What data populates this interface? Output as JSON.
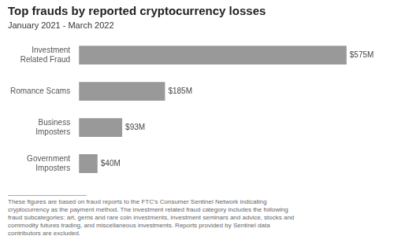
{
  "chart_data": {
    "type": "bar",
    "orientation": "horizontal",
    "title": "Top frauds by reported cryptocurrency losses",
    "subtitle": "January 2021 - March 2022",
    "categories": [
      "Investment\nRelated Fraud",
      "Romance Scams",
      "Business\nImposters",
      "Government\nImposters"
    ],
    "values": [
      575,
      185,
      93,
      40
    ],
    "value_labels": [
      "$575M",
      "$185M",
      "$93M",
      "$40M"
    ],
    "data_labels": true,
    "color": "#999999",
    "xlim": [
      0,
      660
    ],
    "grid": false,
    "tick_labels": "y",
    "footnote": "These figures are based on fraud reports to the FTC's Consumer Sentinel Network indicating\ncryptocurrency as the payment method. The investment related fraud category includes the following\nfraud subcategories: art, gems and rare coin investments, investment seminars and advice, stocks and\ncommodity futures trading, and miscellaneous investments. Reports provided by Sentinel data\ncontributors are excluded."
  }
}
